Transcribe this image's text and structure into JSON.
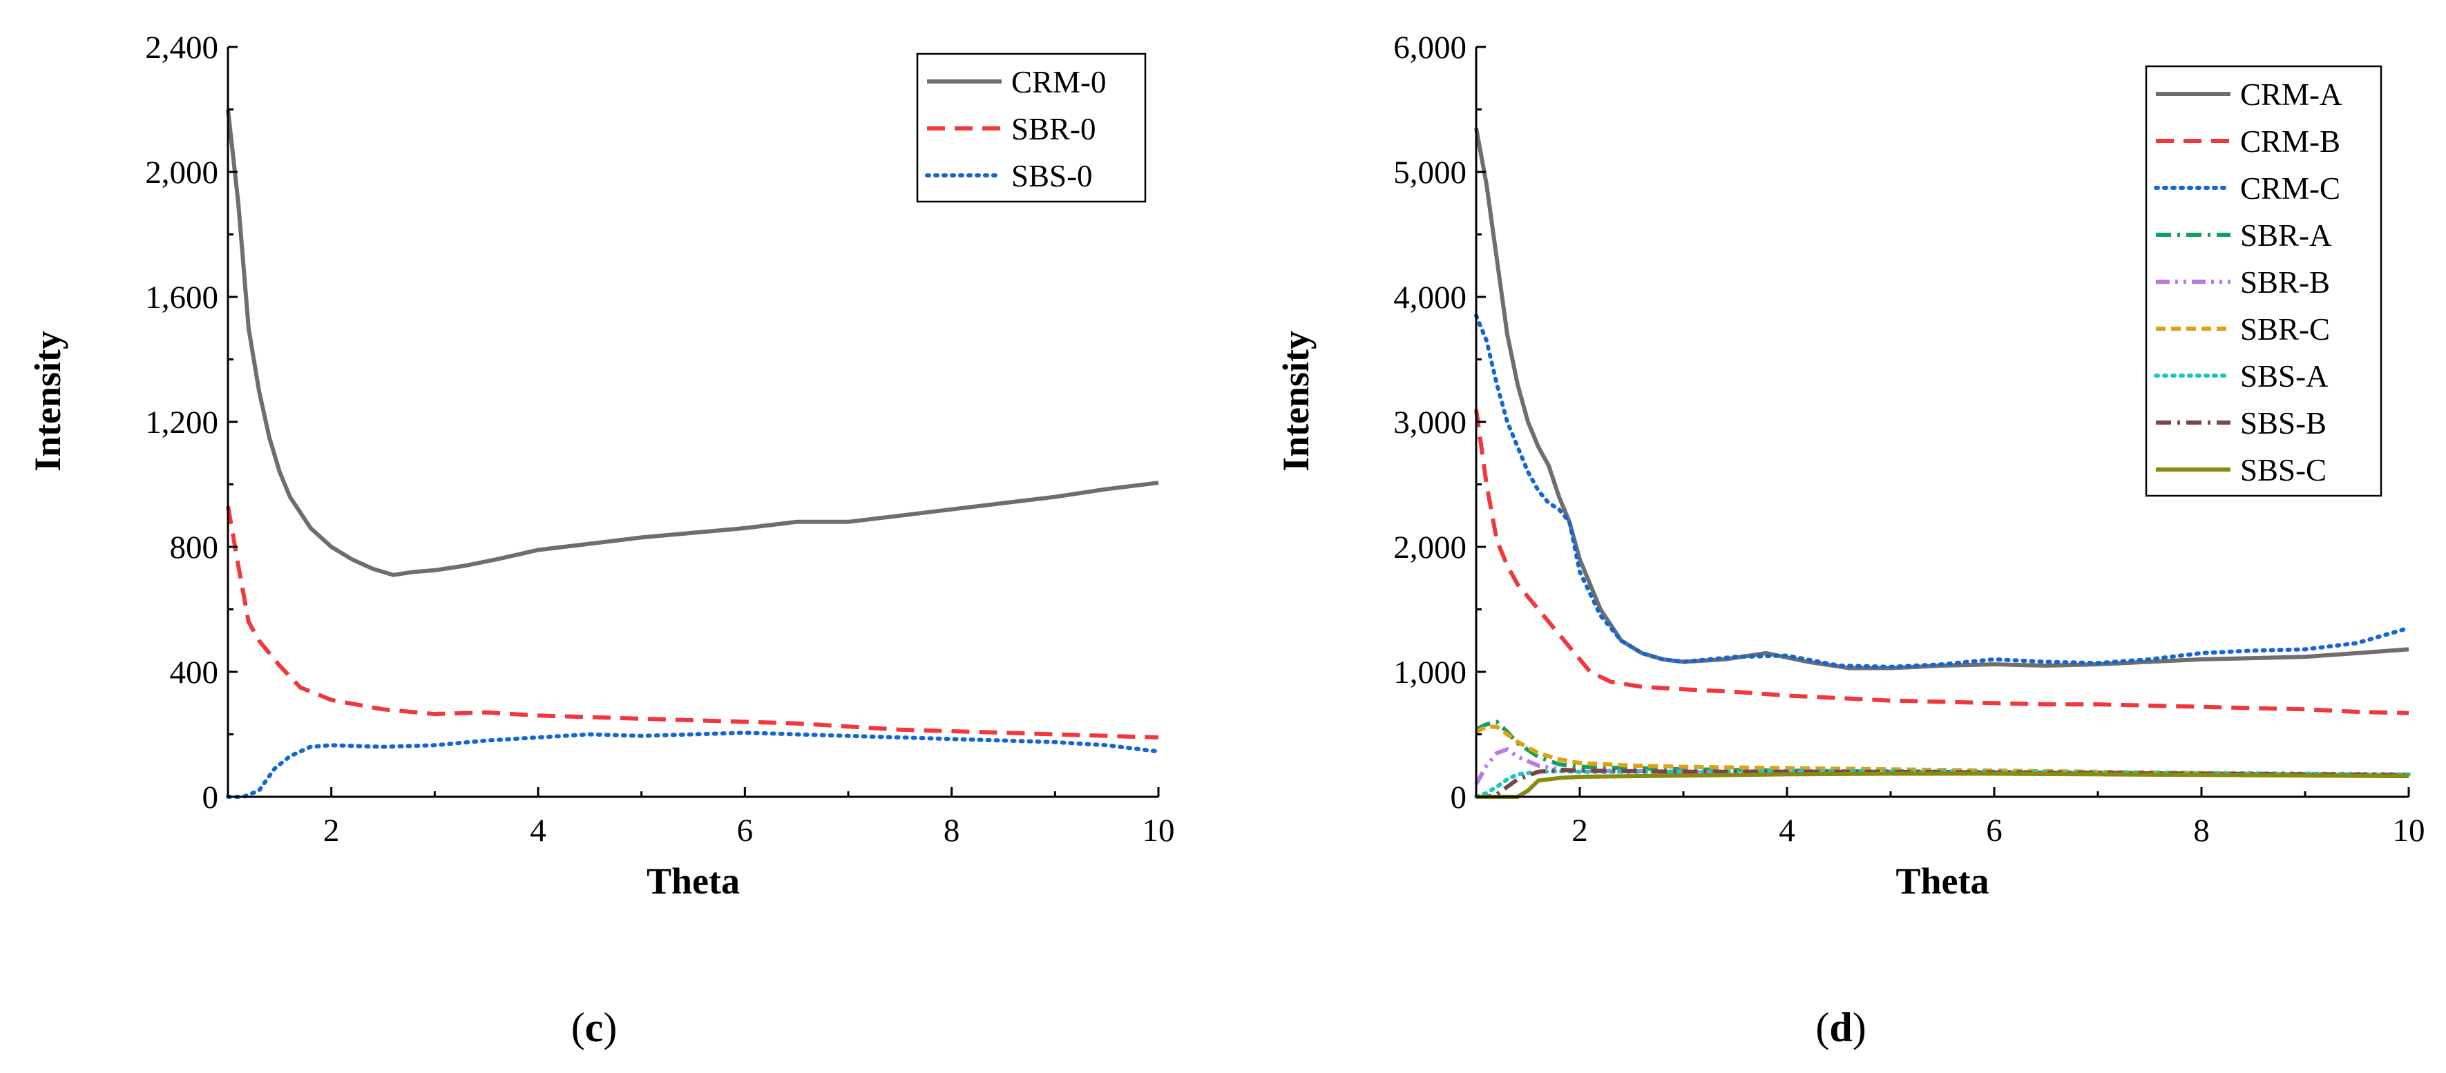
{
  "chart_data": [
    {
      "id": "c",
      "type": "line",
      "panel_label": {
        "open": "(",
        "letter": "c",
        "close": ")"
      },
      "xlabel": "Theta",
      "ylabel": "Intensity",
      "xlim": [
        1,
        10
      ],
      "ylim": [
        0,
        2400
      ],
      "xticks": [
        2,
        4,
        6,
        8,
        10
      ],
      "yticks": [
        0,
        400,
        800,
        1200,
        1600,
        2000,
        2400
      ],
      "xtick_labels": [
        "2",
        "4",
        "6",
        "8",
        "10"
      ],
      "ytick_labels": [
        "0",
        "400",
        "800",
        "1,200",
        "1,600",
        "2,000",
        "2,400"
      ],
      "legend_position": "top-right",
      "series": [
        {
          "name": "CRM-0",
          "color": "#6e6e6e",
          "dash": "solid",
          "x": [
            1.0,
            1.1,
            1.2,
            1.3,
            1.4,
            1.5,
            1.6,
            1.8,
            2.0,
            2.2,
            2.4,
            2.6,
            2.8,
            3.0,
            3.3,
            3.6,
            4.0,
            4.5,
            5.0,
            5.5,
            6.0,
            6.5,
            7.0,
            7.5,
            8.0,
            8.5,
            9.0,
            9.5,
            10.0
          ],
          "y": [
            2200,
            1900,
            1500,
            1300,
            1150,
            1040,
            960,
            860,
            800,
            760,
            730,
            710,
            720,
            725,
            740,
            760,
            790,
            810,
            830,
            845,
            860,
            880,
            880,
            900,
            920,
            940,
            960,
            985,
            1005
          ]
        },
        {
          "name": "SBR-0",
          "color": "#f0383c",
          "dash": "long-dash",
          "x": [
            1.0,
            1.1,
            1.2,
            1.3,
            1.5,
            1.7,
            2.0,
            2.5,
            3.0,
            3.5,
            4.0,
            4.5,
            5.0,
            5.5,
            6.0,
            6.5,
            7.0,
            7.5,
            8.0,
            8.5,
            9.0,
            9.5,
            10.0
          ],
          "y": [
            930,
            740,
            560,
            500,
            420,
            350,
            310,
            280,
            265,
            270,
            260,
            255,
            250,
            245,
            240,
            235,
            225,
            215,
            210,
            205,
            200,
            195,
            190
          ]
        },
        {
          "name": "SBS-0",
          "color": "#1466d2",
          "dash": "dotted",
          "x": [
            1.0,
            1.15,
            1.3,
            1.45,
            1.6,
            1.8,
            2.0,
            2.5,
            3.0,
            3.5,
            4.0,
            4.5,
            5.0,
            5.5,
            6.0,
            6.5,
            7.0,
            7.5,
            8.0,
            8.5,
            9.0,
            9.5,
            10.0
          ],
          "y": [
            0,
            0,
            20,
            90,
            130,
            160,
            165,
            160,
            165,
            180,
            190,
            200,
            195,
            200,
            205,
            200,
            195,
            190,
            185,
            180,
            175,
            165,
            145
          ]
        }
      ]
    },
    {
      "id": "d",
      "type": "line",
      "panel_label": {
        "open": "(",
        "letter": "d",
        "close": ")"
      },
      "xlabel": "Theta",
      "ylabel": "Intensity",
      "xlim": [
        1,
        10
      ],
      "ylim": [
        0,
        6000
      ],
      "xticks": [
        2,
        4,
        6,
        8,
        10
      ],
      "yticks": [
        0,
        1000,
        2000,
        3000,
        4000,
        5000,
        6000
      ],
      "xtick_labels": [
        "2",
        "4",
        "6",
        "8",
        "10"
      ],
      "ytick_labels": [
        "0",
        "1,000",
        "2,000",
        "3,000",
        "4,000",
        "5,000",
        "6,000"
      ],
      "legend_position": "top-right",
      "series": [
        {
          "name": "CRM-A",
          "color": "#6e6e6e",
          "dash": "solid",
          "x": [
            1.0,
            1.1,
            1.2,
            1.3,
            1.4,
            1.5,
            1.6,
            1.7,
            1.8,
            1.9,
            2.0,
            2.2,
            2.4,
            2.6,
            2.8,
            3.0,
            3.4,
            3.8,
            4.2,
            4.6,
            5.0,
            5.5,
            6.0,
            6.5,
            7.0,
            7.5,
            8.0,
            8.5,
            9.0,
            9.5,
            10.0
          ],
          "y": [
            5350,
            4900,
            4300,
            3700,
            3300,
            3000,
            2800,
            2650,
            2400,
            2200,
            1900,
            1500,
            1250,
            1150,
            1100,
            1080,
            1100,
            1150,
            1080,
            1030,
            1030,
            1050,
            1060,
            1050,
            1060,
            1080,
            1100,
            1110,
            1120,
            1150,
            1180
          ]
        },
        {
          "name": "CRM-B",
          "color": "#f0383c",
          "dash": "long-dash",
          "x": [
            1.0,
            1.1,
            1.2,
            1.3,
            1.4,
            1.5,
            1.7,
            1.9,
            2.1,
            2.3,
            2.6,
            3.0,
            3.5,
            4.0,
            4.5,
            5.0,
            5.5,
            6.0,
            6.5,
            7.0,
            7.5,
            8.0,
            8.5,
            9.0,
            9.5,
            10.0
          ],
          "y": [
            3100,
            2500,
            2050,
            1850,
            1700,
            1600,
            1400,
            1200,
            1000,
            920,
            880,
            860,
            840,
            810,
            790,
            770,
            760,
            750,
            740,
            740,
            730,
            720,
            710,
            700,
            680,
            670
          ]
        },
        {
          "name": "CRM-C",
          "color": "#1466d2",
          "dash": "dotted",
          "x": [
            1.0,
            1.1,
            1.2,
            1.3,
            1.4,
            1.5,
            1.6,
            1.7,
            1.8,
            1.9,
            2.0,
            2.2,
            2.4,
            2.6,
            2.8,
            3.0,
            3.5,
            4.0,
            4.5,
            5.0,
            5.5,
            6.0,
            6.5,
            7.0,
            7.5,
            8.0,
            8.5,
            9.0,
            9.5,
            10.0
          ],
          "y": [
            3850,
            3650,
            3300,
            3000,
            2800,
            2600,
            2450,
            2350,
            2300,
            2200,
            1800,
            1450,
            1250,
            1150,
            1100,
            1080,
            1120,
            1130,
            1050,
            1040,
            1060,
            1100,
            1080,
            1070,
            1100,
            1150,
            1170,
            1180,
            1230,
            1350
          ]
        },
        {
          "name": "SBR-A",
          "color": "#13a05e",
          "dash": "dash-dot",
          "x": [
            1.0,
            1.1,
            1.2,
            1.3,
            1.4,
            1.6,
            1.8,
            2.0,
            2.5,
            3.0,
            4.0,
            5.0,
            6.0,
            7.0,
            8.0,
            9.0,
            10.0
          ],
          "y": [
            540,
            580,
            600,
            520,
            430,
            320,
            260,
            240,
            230,
            220,
            210,
            200,
            195,
            190,
            185,
            180,
            175
          ]
        },
        {
          "name": "SBR-B",
          "color": "#b97ae8",
          "dash": "dash-dot-dot",
          "x": [
            1.0,
            1.1,
            1.2,
            1.3,
            1.4,
            1.6,
            1.8,
            2.0,
            2.5,
            3.0,
            4.0,
            5.0,
            6.0,
            7.0,
            8.0,
            9.0,
            10.0
          ],
          "y": [
            100,
            250,
            350,
            380,
            320,
            250,
            220,
            210,
            205,
            200,
            200,
            195,
            190,
            185,
            180,
            175,
            170
          ]
        },
        {
          "name": "SBR-C",
          "color": "#e0a012",
          "dash": "short-dash",
          "x": [
            1.0,
            1.1,
            1.2,
            1.3,
            1.4,
            1.6,
            1.8,
            2.0,
            2.5,
            3.0,
            4.0,
            5.0,
            6.0,
            7.0,
            8.0,
            9.0,
            10.0
          ],
          "y": [
            520,
            560,
            560,
            500,
            440,
            350,
            300,
            270,
            250,
            240,
            230,
            220,
            210,
            200,
            190,
            180,
            175
          ]
        },
        {
          "name": "SBS-A",
          "color": "#18c8c0",
          "dash": "dotted",
          "x": [
            1.0,
            1.1,
            1.2,
            1.3,
            1.4,
            1.6,
            1.8,
            2.0,
            2.5,
            3.0,
            4.0,
            5.0,
            6.0,
            7.0,
            8.0,
            9.0,
            10.0
          ],
          "y": [
            0,
            30,
            80,
            140,
            180,
            200,
            205,
            200,
            200,
            200,
            205,
            205,
            200,
            195,
            190,
            185,
            180
          ]
        },
        {
          "name": "SBS-B",
          "color": "#7b4545",
          "dash": "dash-dot",
          "x": [
            1.0,
            1.1,
            1.2,
            1.3,
            1.4,
            1.6,
            1.8,
            2.0,
            2.5,
            3.0,
            4.0,
            5.0,
            6.0,
            7.0,
            8.0,
            9.0,
            10.0
          ],
          "y": [
            0,
            0,
            20,
            80,
            140,
            200,
            215,
            210,
            205,
            200,
            200,
            200,
            195,
            190,
            185,
            180,
            175
          ]
        },
        {
          "name": "SBS-C",
          "color": "#8a8a10",
          "dash": "solid",
          "x": [
            1.0,
            1.2,
            1.4,
            1.5,
            1.6,
            1.8,
            2.0,
            2.5,
            3.0,
            4.0,
            5.0,
            6.0,
            7.0,
            8.0,
            9.0,
            10.0
          ],
          "y": [
            0,
            0,
            0,
            50,
            130,
            150,
            160,
            165,
            170,
            180,
            185,
            185,
            180,
            175,
            170,
            165
          ]
        }
      ]
    }
  ]
}
